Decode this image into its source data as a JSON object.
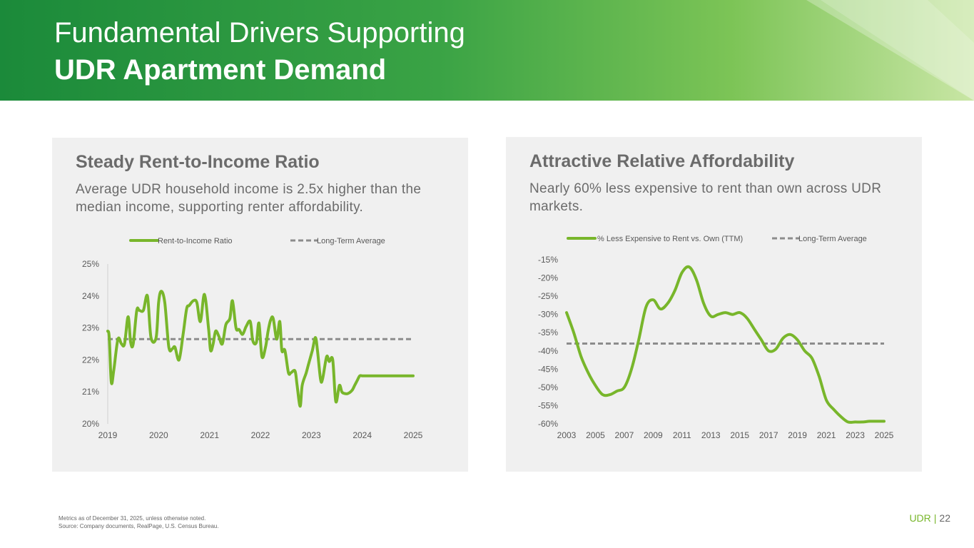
{
  "header": {
    "title_line1": "Fundamental Drivers Supporting",
    "title_line2": "UDR Apartment Demand"
  },
  "colors": {
    "series": "#78b62b",
    "average": "#8c8c8c",
    "panel_bg": "#f0f0f0",
    "banner_start": "#1b8a3a",
    "banner_end": "#c9e6a5"
  },
  "left_panel": {
    "heading": "Steady Rent-to-Income Ratio",
    "subtitle": "Average UDR household income is 2.5x higher than the median income, supporting renter affordability."
  },
  "right_panel": {
    "heading": "Attractive Relative Affordability",
    "subtitle": "Nearly 60% less expensive to rent than own across UDR markets."
  },
  "chart_data": [
    {
      "type": "line",
      "legend_position": "top",
      "grid": false,
      "x_ticks": [
        "2019",
        "2020",
        "2021",
        "2022",
        "2023",
        "2024",
        "2025"
      ],
      "y_ticks": [
        "20%",
        "21%",
        "22%",
        "23%",
        "24%",
        "25%"
      ],
      "xlim": [
        2019.0,
        2025.0
      ],
      "ylim": [
        20,
        25
      ],
      "series": [
        {
          "name": "Rent-to-Income Ratio",
          "x": [
            2019.0,
            2019.03,
            2019.07,
            2019.12,
            2019.2,
            2019.27,
            2019.33,
            2019.4,
            2019.45,
            2019.5,
            2019.57,
            2019.62,
            2019.7,
            2019.78,
            2019.85,
            2019.95,
            2020.0,
            2020.05,
            2020.12,
            2020.2,
            2020.27,
            2020.32,
            2020.4,
            2020.48,
            2020.55,
            2020.6,
            2020.68,
            2020.75,
            2020.82,
            2020.9,
            2020.98,
            2021.02,
            2021.07,
            2021.12,
            2021.18,
            2021.25,
            2021.32,
            2021.4,
            2021.45,
            2021.52,
            2021.58,
            2021.65,
            2021.72,
            2021.8,
            2021.85,
            2021.92,
            2021.97,
            2022.03,
            2022.1,
            2022.15,
            2022.2,
            2022.25,
            2022.32,
            2022.38,
            2022.42,
            2022.48,
            2022.55,
            2022.6,
            2022.68,
            2022.72,
            2022.78,
            2022.82,
            2022.9,
            2022.95,
            2023.02,
            2023.08,
            2023.12,
            2023.18,
            2023.22,
            2023.3,
            2023.35,
            2023.42,
            2023.48,
            2023.55,
            2023.6,
            2023.65,
            2023.72,
            2023.8,
            2023.85,
            2023.9,
            2023.95,
            2024.0,
            2024.03,
            2024.07,
            2024.12,
            2024.18,
            2024.22,
            2024.28,
            2024.33,
            2024.38,
            2024.42,
            2024.48,
            2024.55,
            2024.6,
            2024.68,
            2024.75,
            2024.82,
            2024.88,
            2024.95,
            2025.0
          ],
          "values": [
            22.9,
            22.7,
            21.3,
            21.7,
            22.65,
            22.5,
            22.5,
            23.35,
            22.55,
            22.5,
            23.55,
            23.55,
            23.55,
            24.0,
            22.7,
            22.7,
            23.8,
            24.15,
            23.8,
            22.4,
            22.35,
            22.4,
            22.0,
            22.8,
            23.6,
            23.7,
            23.85,
            23.8,
            23.2,
            24.05,
            23.0,
            22.3,
            22.5,
            22.9,
            22.75,
            22.5,
            23.1,
            23.3,
            23.85,
            23.0,
            22.95,
            22.8,
            23.05,
            23.2,
            22.6,
            22.55,
            23.15,
            22.1,
            22.4,
            22.9,
            23.25,
            23.3,
            22.65,
            23.2,
            22.3,
            22.3,
            21.6,
            21.6,
            21.65,
            21.2,
            20.55,
            21.2,
            21.6,
            21.9,
            22.3,
            22.7,
            22.3,
            21.4,
            21.4,
            22.1,
            21.95,
            22.0,
            20.7,
            21.2,
            21.0,
            20.95,
            20.95,
            21.05,
            21.2,
            21.35,
            21.5,
            21.5,
            21.5,
            21.5,
            21.5,
            21.5,
            21.5,
            21.5,
            21.5,
            21.5,
            21.5,
            21.5,
            21.5,
            21.5,
            21.5,
            21.5,
            21.5,
            21.5,
            21.5,
            21.5
          ]
        },
        {
          "name": "Long-Term Average",
          "x": [
            2019.0,
            2025.0
          ],
          "values": [
            22.65,
            22.65
          ]
        }
      ]
    },
    {
      "type": "line",
      "legend_position": "top",
      "grid": false,
      "x_ticks": [
        "2003",
        "2005",
        "2007",
        "2009",
        "2011",
        "2013",
        "2015",
        "2017",
        "2019",
        "2021",
        "2023",
        "2025"
      ],
      "y_ticks": [
        "-15%",
        "-20%",
        "-25%",
        "-30%",
        "-35%",
        "-40%",
        "-45%",
        "-50%",
        "-55%",
        "-60%"
      ],
      "xlim": [
        2003,
        2025
      ],
      "ylim": [
        -60,
        -15
      ],
      "series": [
        {
          "name": "% Less Expensive to Rent vs. Own (TTM)",
          "x": [
            2003.0,
            2003.5,
            2004.0,
            2004.5,
            2005.0,
            2005.5,
            2006.0,
            2006.5,
            2007.0,
            2007.5,
            2008.0,
            2008.5,
            2009.0,
            2009.5,
            2010.0,
            2010.5,
            2011.0,
            2011.5,
            2012.0,
            2012.5,
            2013.0,
            2013.5,
            2014.0,
            2014.5,
            2015.0,
            2015.5,
            2016.0,
            2016.5,
            2017.0,
            2017.5,
            2018.0,
            2018.5,
            2019.0,
            2019.5,
            2020.0,
            2020.5,
            2021.0,
            2021.5,
            2022.0,
            2022.5,
            2023.0,
            2023.5,
            2024.0,
            2024.5,
            2025.0
          ],
          "values": [
            -29.5,
            -35,
            -41.5,
            -46,
            -49.5,
            -52,
            -52,
            -51,
            -50,
            -45,
            -37,
            -28,
            -26,
            -28.5,
            -27,
            -23.5,
            -18.5,
            -17,
            -20.5,
            -27,
            -30.5,
            -30,
            -29.5,
            -30,
            -29.5,
            -31,
            -34,
            -37,
            -40,
            -39.5,
            -36.5,
            -35.5,
            -37,
            -40,
            -42,
            -47,
            -53.5,
            -56,
            -58,
            -59.5,
            -59.5,
            -59.5,
            -59.3,
            -59.3,
            -59.3
          ]
        },
        {
          "name": "Long-Term Average",
          "x": [
            2003,
            2025
          ],
          "values": [
            -38,
            -38
          ]
        }
      ]
    }
  ],
  "footer": {
    "note_line1": "Metrics as of December 31, 2025, unless otherwise noted.",
    "note_line2": "Source: Company documents, RealPage, U.S. Census Bureau.",
    "brand": "UDR",
    "separator": "|",
    "page_number": "22"
  }
}
